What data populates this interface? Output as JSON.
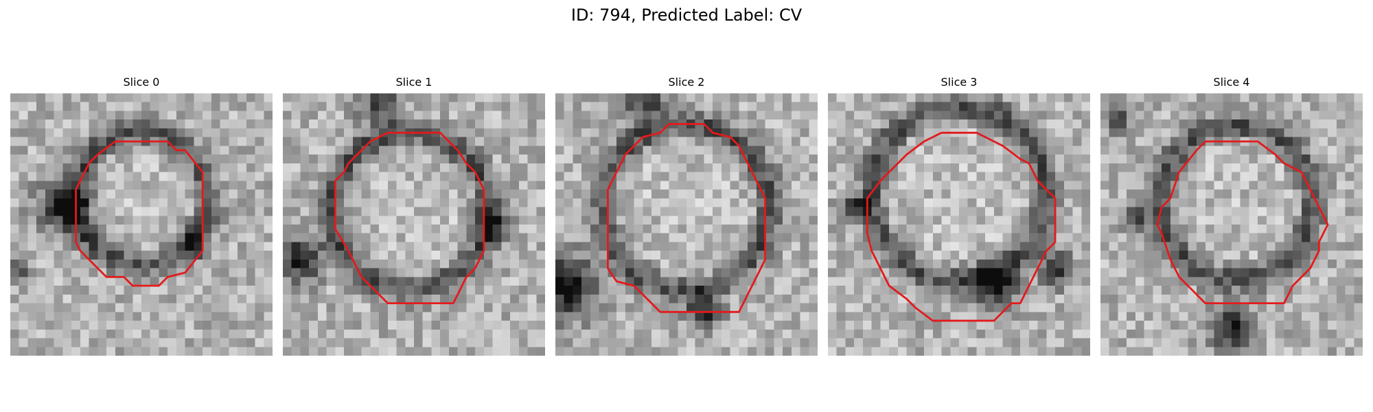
{
  "figure": {
    "title": "ID: 794, Predicted Label: CV",
    "contour_color": "#e41a1c"
  },
  "panels": [
    {
      "title": "Slice 0"
    },
    {
      "title": "Slice 1"
    },
    {
      "title": "Slice 2"
    },
    {
      "title": "Slice 3"
    },
    {
      "title": "Slice 4"
    }
  ]
}
